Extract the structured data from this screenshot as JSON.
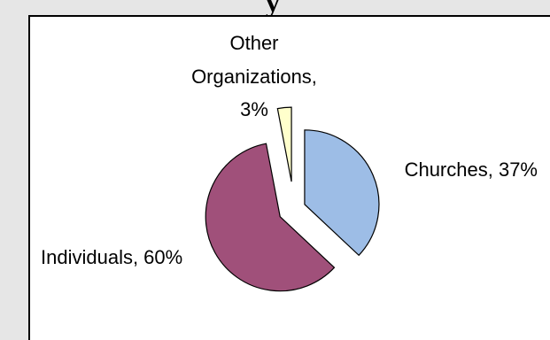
{
  "header": {
    "title_fragment": "y"
  },
  "chart_data": {
    "type": "pie",
    "exploded": true,
    "slices": [
      {
        "label": "Churches",
        "value": 37,
        "display": "Churches, 37%",
        "color": "#9dbde6"
      },
      {
        "label": "Individuals",
        "value": 60,
        "display": "Individuals, 60%",
        "color": "#a0507a"
      },
      {
        "label": "Other Organizations",
        "value": 3,
        "display_lines": [
          "Other",
          "Organizations,",
          "3%"
        ],
        "color": "#ffffcc"
      }
    ]
  }
}
